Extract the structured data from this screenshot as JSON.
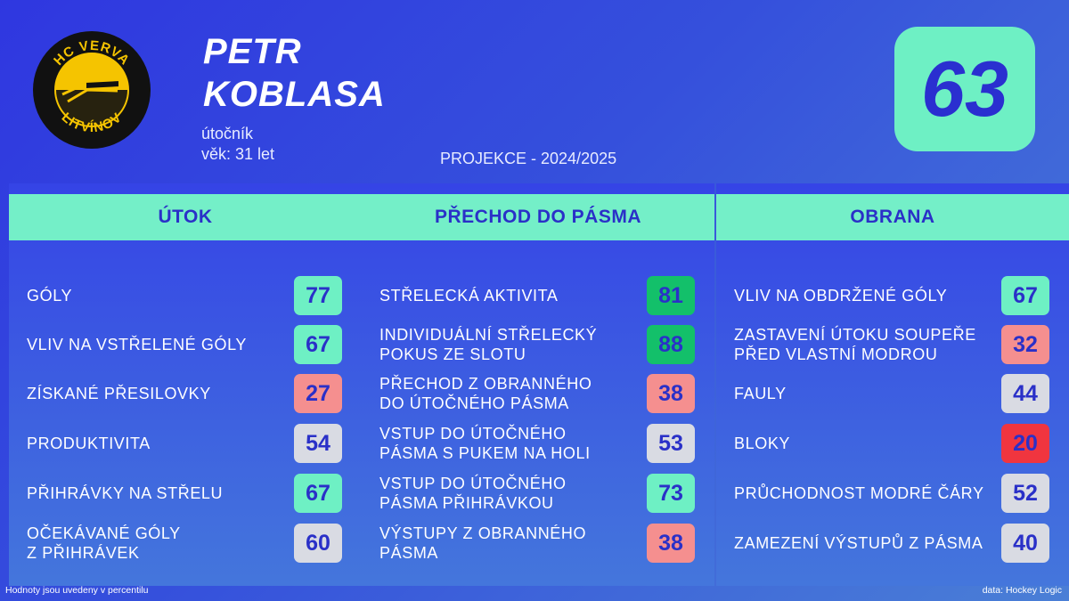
{
  "logo": {
    "top_text": "HC VERVA",
    "bottom_text": "LITVÍNOV",
    "colors": {
      "ring": "#111111",
      "fill": "#f5c400"
    }
  },
  "player": {
    "first_name": "PETR",
    "last_name": "KOBLASA",
    "position": "útočník",
    "age": "věk: 31 let"
  },
  "projection": "PROJEKCE - 2024/2025",
  "overall_rating": "63",
  "colors": {
    "high": "#6ef0c4",
    "very_high": "#13c06a",
    "mid": "#d9dbe3",
    "low": "#f58f8f",
    "very_low": "#f0353f",
    "header": "#74efc8",
    "number_text": "#2a30c8"
  },
  "panels": [
    {
      "title": "ÚTOK",
      "rows": [
        {
          "label": "GÓLY",
          "value": "77",
          "tier": "high"
        },
        {
          "label": "VLIV NA VSTŘELENÉ GÓLY",
          "value": "67",
          "tier": "high"
        },
        {
          "label": "ZÍSKANÉ PŘESILOVKY",
          "value": "27",
          "tier": "low"
        },
        {
          "label": "PRODUKTIVITA",
          "value": "54",
          "tier": "mid"
        },
        {
          "label": "PŘIHRÁVKY NA STŘELU",
          "value": "67",
          "tier": "high"
        },
        {
          "label": "OČEKÁVANÉ GÓLY\nZ PŘIHRÁVEK",
          "value": "60",
          "tier": "mid"
        }
      ]
    },
    {
      "title": "PŘECHOD DO PÁSMA",
      "rows": [
        {
          "label": "STŘELECKÁ AKTIVITA",
          "value": "81",
          "tier": "very_high"
        },
        {
          "label": "INDIVIDUÁLNÍ STŘELECKÝ\nPOKUS ZE SLOTU",
          "value": "88",
          "tier": "very_high"
        },
        {
          "label": "PŘECHOD Z OBRANNÉHO\nDO ÚTOČNÉHO PÁSMA",
          "value": "38",
          "tier": "low"
        },
        {
          "label": "VSTUP DO ÚTOČNÉHO\nPÁSMA S PUKEM NA HOLI",
          "value": "53",
          "tier": "mid"
        },
        {
          "label": "VSTUP DO ÚTOČNÉHO\nPÁSMA PŘIHRÁVKOU",
          "value": "73",
          "tier": "high"
        },
        {
          "label": "VÝSTUPY Z OBRANNÉHO\nPÁSMA",
          "value": "38",
          "tier": "low"
        }
      ]
    },
    {
      "title": "OBRANA",
      "rows": [
        {
          "label": "VLIV NA OBDRŽENÉ GÓLY",
          "value": "67",
          "tier": "high"
        },
        {
          "label": "ZASTAVENÍ ÚTOKU SOUPEŘE\nPŘED VLASTNÍ MODROU",
          "value": "32",
          "tier": "low"
        },
        {
          "label": "FAULY",
          "value": "44",
          "tier": "mid"
        },
        {
          "label": "BLOKY",
          "value": "20",
          "tier": "very_low"
        },
        {
          "label": "PRŮCHODNOST MODRÉ ČÁRY",
          "value": "52",
          "tier": "mid"
        },
        {
          "label": "ZAMEZENÍ VÝSTUPŮ Z PÁSMA",
          "value": "40",
          "tier": "mid"
        }
      ]
    }
  ],
  "footer": {
    "note": "Hodnoty jsou uvedeny v percentilu",
    "source": "data: Hockey Logic"
  }
}
